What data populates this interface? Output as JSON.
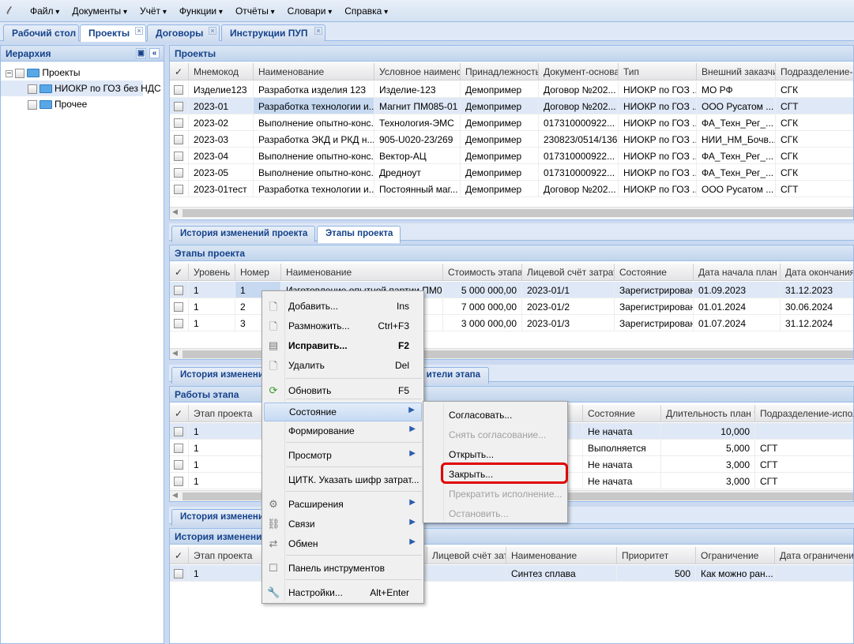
{
  "menubar": {
    "items": [
      "Файл",
      "Документы",
      "Учёт",
      "Функции",
      "Отчёты",
      "Словари",
      "Справка"
    ]
  },
  "tabs": [
    {
      "label": "Рабочий стол",
      "closable": false
    },
    {
      "label": "Проекты",
      "closable": true,
      "active": true
    },
    {
      "label": "Договоры",
      "closable": true
    },
    {
      "label": "Инструкции ПУП",
      "closable": true
    }
  ],
  "hierarchy": {
    "title": "Иерархия",
    "root": "Проекты",
    "children": [
      "НИОКР по ГОЗ без НДС",
      "Прочее"
    ],
    "selected": "НИОКР по ГОЗ без НДС"
  },
  "projects": {
    "title": "Проекты",
    "columns": [
      "✓",
      "Мнемокод",
      "Наименование",
      "Условное наименова",
      "Принадлежность",
      "Документ-основан",
      "Тип",
      "Внешний заказчик",
      "Подразделение-от"
    ],
    "rows": [
      [
        "Изделие123",
        "Разработка изделия 123",
        "Изделие-123",
        "Демопример",
        "Договор №202...",
        "НИОКР по ГОЗ ...",
        "МО РФ",
        "СГК"
      ],
      [
        "2023-01",
        "Разработка технологии и...",
        "Магнит ПМ085-01",
        "Демопример",
        "Договор №202...",
        "НИОКР по ГОЗ ...",
        "ООО Русатом ...",
        "СГТ"
      ],
      [
        "2023-02",
        "Выполнение опытно-конс...",
        "Технология-ЭМС",
        "Демопример",
        "017310000922...",
        "НИОКР по ГОЗ ...",
        "ФА_Техн_Рег_...",
        "СГК"
      ],
      [
        "2023-03",
        "Разработка ЭКД и РКД н...",
        "905-U020-23/269",
        "Демопример",
        "230823/0514/136",
        "НИОКР по ГОЗ ...",
        "НИИ_НМ_Бочв...",
        "СГК"
      ],
      [
        "2023-04",
        "Выполнение опытно-конс...",
        "Вектор-АЦ",
        "Демопример",
        "017310000922...",
        "НИОКР по ГОЗ ...",
        "ФА_Техн_Рег_...",
        "СГК"
      ],
      [
        "2023-05",
        "Выполнение опытно-конс...",
        "Дредноут",
        "Демопример",
        "017310000922...",
        "НИОКР по ГОЗ ...",
        "ФА_Техн_Рег_...",
        "СГК"
      ],
      [
        "2023-01тест",
        "Разработка технологии и...",
        "Постоянный маг...",
        "Демопример",
        "Договор №202...",
        "НИОКР по ГОЗ ...",
        "ООО Русатом ...",
        "СГТ"
      ]
    ],
    "selected_row": 1
  },
  "project_tabs": [
    "История изменений проекта",
    "Этапы проекта"
  ],
  "stages": {
    "title": "Этапы проекта",
    "columns": [
      "✓",
      "Уровень",
      "Номер",
      "Наименование",
      "Стоимость этапа",
      "Лицевой счёт затрат.",
      "Состояние",
      "Дата начала план",
      "Дата окончания п"
    ],
    "rows": [
      [
        "1",
        "1",
        "Изготовление опытной партии ПМ0...",
        "5 000 000,00",
        "2023-01/1",
        "Зарегистрирован",
        "01.09.2023",
        "31.12.2023"
      ],
      [
        "1",
        "2",
        "",
        "7 000 000,00",
        "2023-01/2",
        "Зарегистрирован",
        "01.01.2024",
        "30.06.2024"
      ],
      [
        "1",
        "3",
        "",
        "3 000 000,00",
        "2023-01/3",
        "Зарегистрирован",
        "01.07.2024",
        "31.12.2024"
      ]
    ],
    "selected_row": 0
  },
  "stage_tabs": [
    "История изменени",
    "ители этапа"
  ],
  "works": {
    "title": "Работы этапа",
    "columns": [
      "✓",
      "Этап проекта",
      "Состояние",
      "Длительность план",
      "Подразделение-исполни"
    ],
    "rows": [
      [
        "1",
        "Не начата",
        "10,000",
        ""
      ],
      [
        "1",
        "Выполняется",
        "5,000",
        "СГТ"
      ],
      [
        "1",
        "Не начата",
        "3,000",
        "СГТ"
      ],
      [
        "1",
        "Не начата",
        "3,000",
        "СГТ"
      ]
    ],
    "selected_row": 0
  },
  "work_tabs": [
    "История изменени"
  ],
  "history": {
    "title": "История изменени",
    "columns": [
      "✓",
      "Этап проекта",
      "Лицевой счёт затр",
      "Наименование",
      "Приоритет",
      "Ограничение",
      "Дата ограничения"
    ],
    "rows": [
      [
        "1",
        "",
        "Синтез сплава",
        "500",
        "Как можно ран...",
        ""
      ]
    ],
    "selected_row": 0
  },
  "context_menu": {
    "items": [
      {
        "label": "Добавить...",
        "shortcut": "Ins",
        "icon": "document-icon"
      },
      {
        "label": "Размножить...",
        "shortcut": "Ctrl+F3",
        "icon": "document-add-icon"
      },
      {
        "label": "Исправить...",
        "shortcut": "F2",
        "icon": "document-edit-icon",
        "bold": true
      },
      {
        "label": "Удалить",
        "shortcut": "Del",
        "icon": "document-delete-icon"
      },
      {
        "label": "Обновить",
        "shortcut": "F5",
        "icon": "refresh-icon"
      },
      {
        "label": "Состояние",
        "submenu": true,
        "highlighted": true
      },
      {
        "label": "Формирование",
        "submenu": true
      },
      {
        "label": "Просмотр",
        "submenu": true
      },
      {
        "label": "ЦИТК. Указать шифр затрат..."
      },
      {
        "label": "Расширения",
        "submenu": true,
        "icon": "gear-icon"
      },
      {
        "label": "Связи",
        "submenu": true,
        "icon": "link-icon"
      },
      {
        "label": "Обмен",
        "submenu": true,
        "icon": "exchange-icon"
      },
      {
        "label": "Панель инструментов",
        "icon": "checkbox-icon"
      },
      {
        "label": "Настройки...",
        "shortcut": "Alt+Enter",
        "icon": "wrench-icon"
      }
    ]
  },
  "submenu": {
    "items": [
      {
        "label": "Согласовать...",
        "disabled": false
      },
      {
        "label": "Снять согласование...",
        "disabled": true
      },
      {
        "label": "Открыть...",
        "disabled": false
      },
      {
        "label": "Закрыть...",
        "disabled": false,
        "annotated": true
      },
      {
        "label": "Прекратить исполнение...",
        "disabled": true
      },
      {
        "label": "Остановить...",
        "disabled": true
      }
    ]
  },
  "colors": {
    "accent": "#15428b",
    "highlight_box": "#e00000",
    "selected_row": "#dfe8f6"
  }
}
